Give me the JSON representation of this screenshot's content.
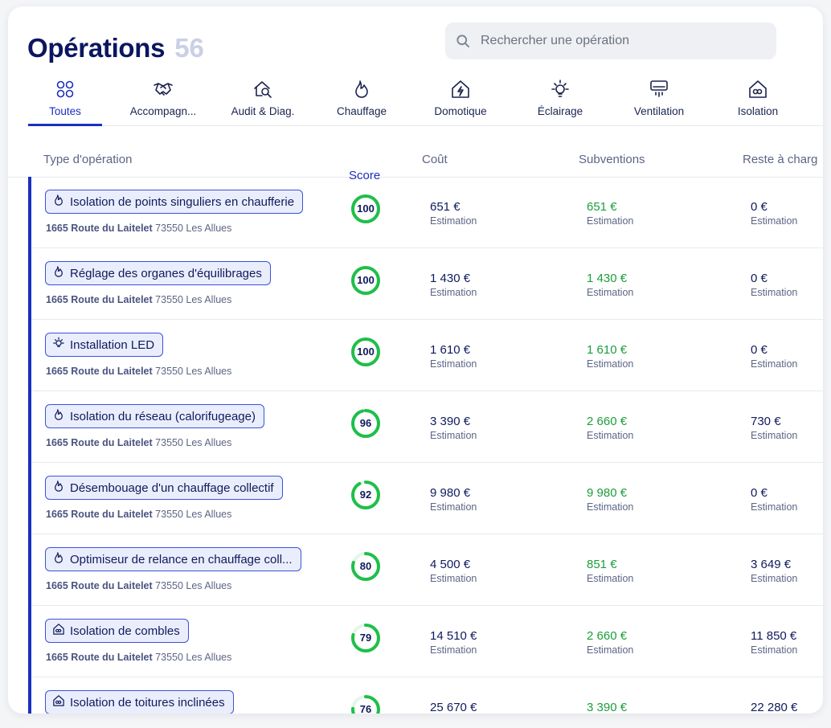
{
  "header": {
    "title": "Opérations",
    "count": "56"
  },
  "search": {
    "placeholder": "Rechercher une opération"
  },
  "tabs": [
    {
      "label": "Toutes",
      "icon": "grid-circles-icon",
      "active": true
    },
    {
      "label": "Accompagn...",
      "icon": "handshake-icon"
    },
    {
      "label": "Audit & Diag.",
      "icon": "house-search-icon"
    },
    {
      "label": "Chauffage",
      "icon": "flame-icon"
    },
    {
      "label": "Domotique",
      "icon": "smart-home-icon"
    },
    {
      "label": "Éclairage",
      "icon": "lightbulb-icon"
    },
    {
      "label": "Ventilation",
      "icon": "air-conditioner-icon"
    },
    {
      "label": "Isolation",
      "icon": "house-insulation-icon"
    }
  ],
  "table": {
    "columns": {
      "type": "Type d'opération",
      "score": "Score",
      "cost": "Coût",
      "subsidies": "Subventions",
      "remaining": "Reste à charg"
    },
    "rows": [
      {
        "name": "Isolation de points singuliers en chaufferie",
        "icon": "flame-icon",
        "address_bold": "1665 Route du Laitelet",
        "address_rest": " 73550 Les Allues",
        "score": 100,
        "cost": "651 €",
        "subsidy": "651 €",
        "remaining": "0 €",
        "estimate": "Estimation"
      },
      {
        "name": "Réglage des organes d'équilibrages",
        "icon": "flame-icon",
        "address_bold": "1665 Route du Laitelet",
        "address_rest": " 73550 Les Allues",
        "score": 100,
        "cost": "1 430 €",
        "subsidy": "1 430 €",
        "remaining": "0 €",
        "estimate": "Estimation"
      },
      {
        "name": "Installation LED",
        "icon": "lightbulb-icon",
        "address_bold": "1665 Route du Laitelet",
        "address_rest": " 73550 Les Allues",
        "score": 100,
        "cost": "1 610 €",
        "subsidy": "1 610 €",
        "remaining": "0 €",
        "estimate": "Estimation"
      },
      {
        "name": "Isolation du réseau (calorifugeage)",
        "icon": "flame-icon",
        "address_bold": "1665 Route du Laitelet",
        "address_rest": " 73550 Les Allues",
        "score": 96,
        "cost": "3 390 €",
        "subsidy": "2 660 €",
        "remaining": "730 €",
        "estimate": "Estimation"
      },
      {
        "name": "Désembouage d'un chauffage collectif",
        "icon": "flame-icon",
        "address_bold": "1665 Route du Laitelet",
        "address_rest": " 73550 Les Allues",
        "score": 92,
        "cost": "9 980 €",
        "subsidy": "9 980 €",
        "remaining": "0 €",
        "estimate": "Estimation"
      },
      {
        "name": "Optimiseur de relance en chauffage coll...",
        "icon": "flame-icon",
        "address_bold": "1665 Route du Laitelet",
        "address_rest": " 73550 Les Allues",
        "score": 80,
        "cost": "4 500 €",
        "subsidy": "851 €",
        "remaining": "3 649 €",
        "estimate": "Estimation"
      },
      {
        "name": "Isolation de combles",
        "icon": "house-insulation-icon",
        "address_bold": "1665 Route du Laitelet",
        "address_rest": " 73550 Les Allues",
        "score": 79,
        "cost": "14 510 €",
        "subsidy": "2 660 €",
        "remaining": "11 850 €",
        "estimate": "Estimation"
      },
      {
        "name": "Isolation de toitures inclinées",
        "icon": "house-insulation-icon",
        "address_bold": "",
        "address_rest": "",
        "score": 76,
        "cost": "25 670 €",
        "subsidy": "3 390 €",
        "remaining": "22 280 €",
        "estimate": ""
      }
    ]
  },
  "colors": {
    "accent": "#1b2fbf",
    "score_green": "#1fbf4a",
    "subsidy_green": "#1b9e3b",
    "navy": "#0f1a5c"
  }
}
